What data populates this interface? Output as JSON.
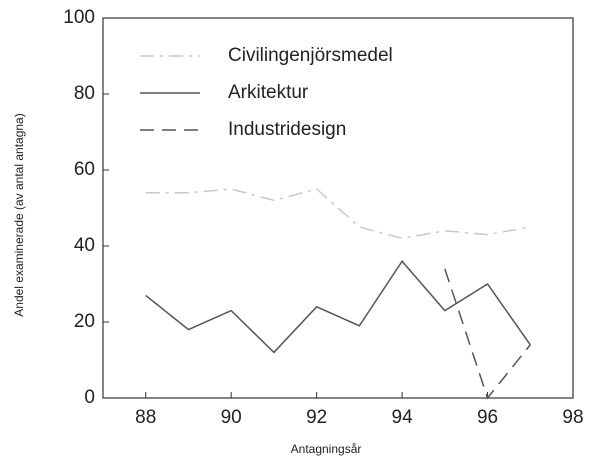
{
  "chart_data": {
    "type": "line",
    "x": [
      88,
      89,
      90,
      91,
      92,
      93,
      94,
      95,
      96,
      97
    ],
    "series": [
      {
        "name": "Civilingenjörsmedel",
        "color": "#c8c8c8",
        "dash": "dashdot",
        "values": [
          54,
          54,
          55,
          52,
          55,
          45,
          42,
          44,
          43,
          45
        ]
      },
      {
        "name": "Arkitektur",
        "color": "#555555",
        "dash": "solid",
        "values": [
          27,
          18,
          23,
          12,
          24,
          19,
          36,
          23,
          30,
          14
        ]
      },
      {
        "name": "Industridesign",
        "color": "#555555",
        "dash": "dashed",
        "values": [
          null,
          null,
          null,
          null,
          null,
          null,
          null,
          34,
          0,
          14
        ]
      }
    ],
    "xlabel": "Antagningsår",
    "ylabel": "Andel examinerade (av antal antagna)",
    "xlim": [
      87,
      98
    ],
    "xticks": [
      88,
      90,
      92,
      94,
      96,
      98
    ],
    "ylim": [
      0,
      100
    ],
    "yticks": [
      0,
      20,
      40,
      60,
      80,
      100
    ],
    "legend": "upper left"
  }
}
